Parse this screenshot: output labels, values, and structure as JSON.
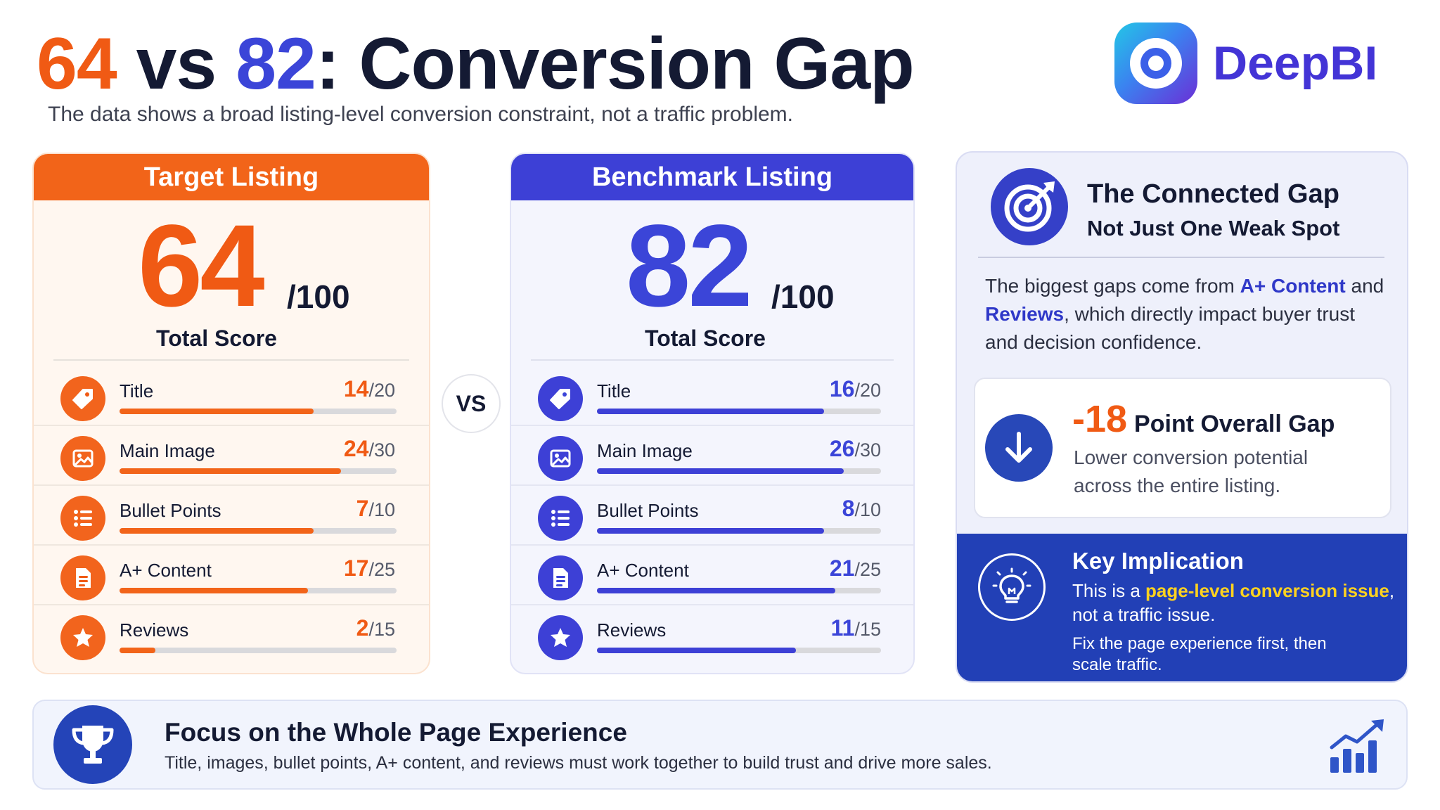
{
  "header": {
    "headline_left": "64",
    "headline_vs": "vs",
    "headline_right": "82",
    "headline_rest": ": Conversion Gap",
    "subtitle": "The data shows a broad listing-level conversion constraint, not a traffic problem.",
    "brand": "DeepBI"
  },
  "target": {
    "heading": "Target Listing",
    "score": "64",
    "max": "/100",
    "score_label": "Total Score",
    "metrics": [
      {
        "label": "Title",
        "score": "14",
        "max": "/20",
        "fraction": 0.7,
        "icon": "tag-icon"
      },
      {
        "label": "Main Image",
        "score": "24",
        "max": "/30",
        "fraction": 0.8,
        "icon": "image-icon"
      },
      {
        "label": "Bullet Points",
        "score": "7",
        "max": "/10",
        "fraction": 0.7,
        "icon": "list-icon"
      },
      {
        "label": "A+ Content",
        "score": "17",
        "max": "/25",
        "fraction": 0.68,
        "icon": "document-icon"
      },
      {
        "label": "Reviews",
        "score": "2",
        "max": "/15",
        "fraction": 0.13,
        "icon": "star-icon"
      }
    ]
  },
  "vs_label": "VS",
  "benchmark": {
    "heading": "Benchmark Listing",
    "score": "82",
    "max": "/100",
    "score_label": "Total Score",
    "metrics": [
      {
        "label": "Title",
        "score": "16",
        "max": "/20",
        "fraction": 0.8,
        "icon": "tag-icon"
      },
      {
        "label": "Main Image",
        "score": "26",
        "max": "/30",
        "fraction": 0.87,
        "icon": "image-icon"
      },
      {
        "label": "Bullet Points",
        "score": "8",
        "max": "/10",
        "fraction": 0.8,
        "icon": "list-icon"
      },
      {
        "label": "A+ Content",
        "score": "21",
        "max": "/25",
        "fraction": 0.84,
        "icon": "document-icon"
      },
      {
        "label": "Reviews",
        "score": "11",
        "max": "/15",
        "fraction": 0.7,
        "icon": "star-icon"
      }
    ]
  },
  "gap_panel": {
    "title": "The Connected Gap",
    "subtitle": "Not Just One Weak Spot",
    "body_1": "The biggest gaps come from ",
    "body_hl_1": "A+ Content",
    "body_2": " and ",
    "body_hl_2": "Reviews",
    "body_3": ", which directly impact buyer trust and decision confidence.",
    "gap_value": "-18",
    "gap_label": "Point Overall Gap",
    "gap_desc": "Lower conversion potential across the entire listing.",
    "implication_title": "Key Implication",
    "implication_1a": "This is a ",
    "implication_1b": "page-level conversion issue",
    "implication_1c": ", not a traffic issue.",
    "implication_2": "Fix the page experience first, then scale traffic."
  },
  "banner": {
    "title": "Focus on the Whole Page Experience",
    "description": "Title, images, bullet points, A+ content, and reviews must work together to build trust and drive more sales."
  },
  "colors": {
    "target_accent": "#f05a14",
    "benchmark_accent": "#3b45d8",
    "brand": "#4334d6",
    "highlight_yellow": "#ffd21f"
  }
}
